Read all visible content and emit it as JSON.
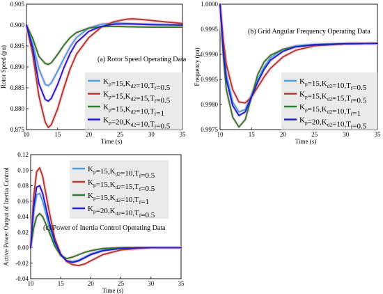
{
  "chart_data": [
    {
      "type": "line",
      "title": "(a) Rotor Speed Operating Data",
      "xlabel": "Time (s)",
      "ylabel": "Rotor Speed (pu)",
      "xlim": [
        10,
        35
      ],
      "ylim": [
        0.875,
        0.905
      ],
      "xticks": [
        "10",
        "15",
        "20",
        "25",
        "30",
        "35"
      ],
      "yticks": [
        "0.875",
        "0.880",
        "0.885",
        "0.890",
        "0.895",
        "0.900",
        "0.905"
      ],
      "legend_position": "right",
      "series": [
        {
          "name": "Kp=15,Kd2=10,Tf=0.5",
          "color": "#4a9fe0",
          "x": [
            10,
            11,
            12,
            13,
            13.5,
            14,
            15,
            16,
            17,
            18,
            20,
            22,
            24,
            26,
            28,
            30,
            32,
            35
          ],
          "y": [
            0.9,
            0.8955,
            0.8895,
            0.8858,
            0.8855,
            0.8862,
            0.889,
            0.892,
            0.8948,
            0.897,
            0.8993,
            0.9002,
            0.9005,
            0.9004,
            0.9003,
            0.9002,
            0.9001,
            0.9
          ]
        },
        {
          "name": "Kp=15,Kd2=15,Tf=0.5",
          "color": "#b03a2e",
          "x": [
            10,
            11,
            12,
            13,
            13.5,
            14,
            15,
            16,
            17,
            18,
            20,
            22,
            24,
            26,
            27,
            28,
            30,
            32,
            35
          ],
          "y": [
            0.9,
            0.893,
            0.883,
            0.8768,
            0.8755,
            0.8762,
            0.88,
            0.885,
            0.8895,
            0.893,
            0.897,
            0.8995,
            0.9008,
            0.9014,
            0.9015,
            0.9014,
            0.9011,
            0.9008,
            0.9004
          ]
        },
        {
          "name": "Kp=15,Kd2=10,Tf=1",
          "color": "#2e7d2e",
          "x": [
            10,
            11,
            12,
            13,
            13.5,
            14,
            15,
            16,
            17,
            18,
            20,
            22,
            24,
            26,
            30,
            35
          ],
          "y": [
            0.9,
            0.8968,
            0.8925,
            0.8908,
            0.8906,
            0.891,
            0.893,
            0.8952,
            0.897,
            0.8982,
            0.8993,
            0.8996,
            0.8997,
            0.8996,
            0.8995,
            0.8995
          ]
        },
        {
          "name": "Kp=20,Kd2=10,Tf=0.5",
          "color": "#1f1fd0",
          "x": [
            10,
            11,
            12,
            13,
            13.5,
            14,
            15,
            16,
            17,
            18,
            20,
            22,
            24,
            26,
            28,
            30,
            35
          ],
          "y": [
            0.9,
            0.8945,
            0.886,
            0.8822,
            0.8818,
            0.8825,
            0.8858,
            0.8898,
            0.8932,
            0.8958,
            0.8985,
            0.8997,
            0.9002,
            0.9003,
            0.9002,
            0.9001,
            0.9
          ]
        }
      ]
    },
    {
      "type": "line",
      "title": "(b) Grid Angular Frequency Operating Data",
      "xlabel": "Time (s)",
      "ylabel": "Frequency (pu)",
      "xlim": [
        10,
        35
      ],
      "ylim": [
        0.9975,
        1.0
      ],
      "xticks": [
        "10",
        "15",
        "20",
        "25",
        "30",
        "35"
      ],
      "yticks": [
        "0.9975",
        "0.9980",
        "0.9985",
        "0.9990",
        "0.9995",
        "1.0000"
      ],
      "legend_position": "bottom-right",
      "series": [
        {
          "name": "Kp=15,Kd2=10,Tf=0.5",
          "color": "#4a9fe0",
          "x": [
            10,
            10.5,
            11,
            12,
            13,
            14,
            15,
            16,
            17,
            18,
            20,
            22,
            25,
            30,
            35
          ],
          "y": [
            1.0,
            0.9992,
            0.9986,
            0.99805,
            0.99785,
            0.9979,
            0.9982,
            0.9985,
            0.99875,
            0.99893,
            0.9991,
            0.99917,
            0.9992,
            0.99922,
            0.99922
          ]
        },
        {
          "name": "Kp=15,Kd2=15,Tf=0.5",
          "color": "#b03a2e",
          "x": [
            10,
            10.5,
            11,
            12,
            13,
            14,
            15,
            16,
            17,
            18,
            20,
            22,
            25,
            30,
            35
          ],
          "y": [
            1.0,
            0.9993,
            0.9988,
            0.9983,
            0.99805,
            0.99803,
            0.99815,
            0.99835,
            0.99855,
            0.99872,
            0.99895,
            0.99908,
            0.99917,
            0.99921,
            0.99922
          ]
        },
        {
          "name": "Kp=15,Kd2=10,Tf=1",
          "color": "#2e7d2e",
          "x": [
            10,
            10.5,
            11,
            12,
            13,
            14,
            15,
            16,
            17,
            18,
            20,
            22,
            25,
            30,
            35
          ],
          "y": [
            1.0,
            0.999,
            0.9983,
            0.99775,
            0.99755,
            0.9977,
            0.99815,
            0.9986,
            0.99885,
            0.99898,
            0.9991,
            0.99915,
            0.99919,
            0.99921,
            0.99922
          ]
        },
        {
          "name": "Kp=20,Kd2=10,Tf=0.5",
          "color": "#1f1fd0",
          "x": [
            10,
            10.5,
            11,
            12,
            13,
            14,
            15,
            16,
            17,
            18,
            20,
            22,
            25,
            30,
            35
          ],
          "y": [
            1.0,
            0.9991,
            0.9985,
            0.99798,
            0.99778,
            0.99785,
            0.99815,
            0.99845,
            0.9987,
            0.99888,
            0.99906,
            0.99915,
            0.99919,
            0.99921,
            0.99922
          ]
        }
      ]
    },
    {
      "type": "line",
      "title": "(c) Power of Inertia Control Operating Data",
      "xlabel": "Time (s)",
      "ylabel": "Active Power Output of Inertia Control",
      "xlim": [
        10,
        35
      ],
      "ylim": [
        -0.04,
        0.12
      ],
      "xticks": [
        "10",
        "15",
        "20",
        "25",
        "30",
        "35"
      ],
      "yticks": [
        "-0.04",
        "-0.02",
        "0.00",
        "0.02",
        "0.04",
        "0.06",
        "0.08",
        "0.10",
        "0.12"
      ],
      "legend_position": "top",
      "series": [
        {
          "name": "Kp=15,Kd2=10,Tf=0.5",
          "color": "#4a9fe0",
          "x": [
            10,
            10.5,
            11,
            11.5,
            12,
            13,
            14,
            15,
            16,
            17,
            18,
            19,
            20,
            22,
            25,
            28,
            30,
            35
          ],
          "y": [
            0,
            0.045,
            0.068,
            0.07,
            0.06,
            0.03,
            0.005,
            -0.01,
            -0.017,
            -0.018,
            -0.016,
            -0.012,
            -0.008,
            -0.003,
            -0.001,
            0,
            0,
            0
          ]
        },
        {
          "name": "Kp=15,Kd2=15,Tf=0.5",
          "color": "#b03a2e",
          "x": [
            10,
            10.5,
            11,
            11.5,
            12,
            13,
            14,
            15,
            16,
            17,
            18,
            19,
            20,
            22,
            25,
            28,
            30,
            35
          ],
          "y": [
            0,
            0.065,
            0.098,
            0.103,
            0.092,
            0.05,
            0.012,
            -0.008,
            -0.018,
            -0.022,
            -0.023,
            -0.021,
            -0.017,
            -0.009,
            -0.003,
            -0.001,
            0,
            0
          ]
        },
        {
          "name": "Kp=15,Kd2=10,Tf=1",
          "color": "#2e7d2e",
          "x": [
            10,
            10.5,
            11,
            11.5,
            12,
            13,
            14,
            15,
            16,
            17,
            18,
            19,
            20,
            22,
            25,
            28,
            30,
            35
          ],
          "y": [
            0,
            0.025,
            0.04,
            0.044,
            0.04,
            0.022,
            0.002,
            -0.01,
            -0.014,
            -0.012,
            -0.009,
            -0.006,
            -0.004,
            -0.001,
            0,
            0,
            0,
            0
          ]
        },
        {
          "name": "Kp=20,Kd2=10,Tf=0.5",
          "color": "#1f1fd0",
          "x": [
            10,
            10.5,
            11,
            11.5,
            12,
            13,
            14,
            15,
            16,
            17,
            18,
            19,
            20,
            22,
            25,
            28,
            30,
            35
          ],
          "y": [
            0,
            0.052,
            0.078,
            0.08,
            0.07,
            0.036,
            0.008,
            -0.009,
            -0.017,
            -0.019,
            -0.017,
            -0.013,
            -0.009,
            -0.004,
            -0.001,
            0,
            0,
            0
          ]
        }
      ]
    }
  ]
}
